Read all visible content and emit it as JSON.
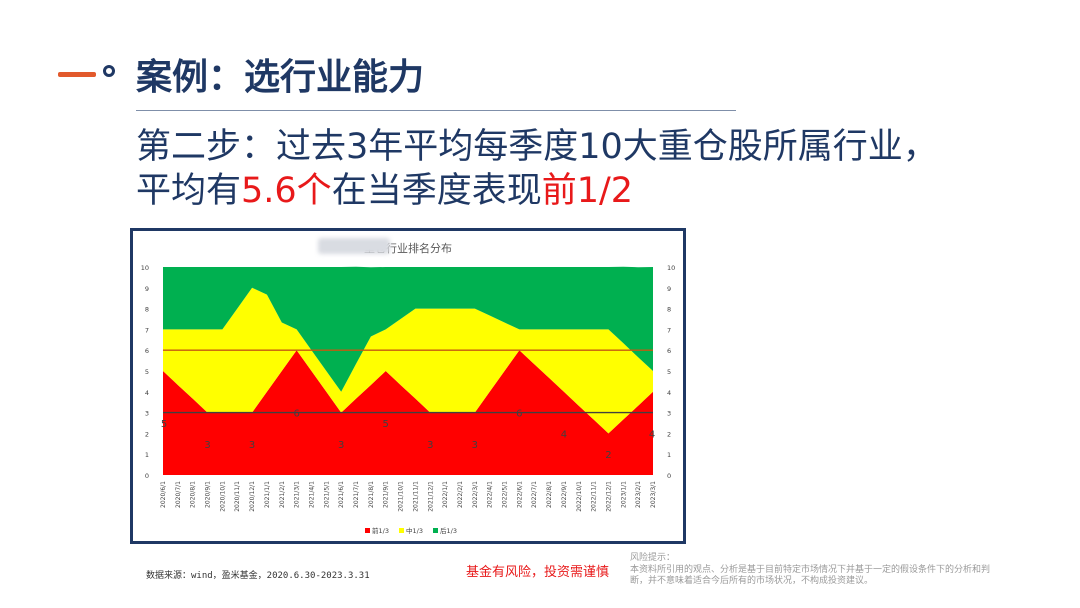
{
  "header": {
    "title": "案例：选行业能力",
    "step_line1": "第二步：过去3年平均每季度10大重仓股所属行业，",
    "step_line2_prefix": "平均有",
    "step_line2_number": "5.6个",
    "step_line2_middle": "在当季度表现",
    "step_line2_highlight": "前1/2"
  },
  "chart_data": {
    "type": "area",
    "title": "重仓行业排名分布",
    "categories": [
      "2020/6/1",
      "2020/7/1",
      "2020/8/1",
      "2020/9/1",
      "2020/10/1",
      "2020/11/1",
      "2020/12/1",
      "2021/1/1",
      "2021/2/1",
      "2021/3/1",
      "2021/4/1",
      "2021/5/1",
      "2021/6/1",
      "2021/7/1",
      "2021/8/1",
      "2021/9/1",
      "2021/10/1",
      "2021/11/1",
      "2021/12/1",
      "2022/1/1",
      "2022/2/1",
      "2022/3/1",
      "2022/4/1",
      "2022/5/1",
      "2022/6/1",
      "2022/7/1",
      "2022/8/1",
      "2022/9/1",
      "2022/10/1",
      "2022/11/1",
      "2022/12/1",
      "2023/1/1",
      "2023/2/1",
      "2023/3/1"
    ],
    "series": [
      {
        "name": "前1/3",
        "color": "#ff0000",
        "values": [
          5,
          4.33,
          3.67,
          3,
          3,
          3,
          3,
          4,
          5,
          6,
          5,
          4,
          3,
          3.67,
          4.33,
          5,
          4.33,
          3.67,
          3,
          3,
          3,
          3,
          4,
          5,
          6,
          5.33,
          4.67,
          4,
          3.33,
          2.67,
          2,
          2.67,
          3.33,
          4
        ]
      },
      {
        "name": "中1/3",
        "color": "#ffff00",
        "values": [
          2,
          2.67,
          3.33,
          4,
          4,
          5,
          6,
          4.67,
          2.33,
          1,
          1,
          1,
          1,
          1.67,
          2.33,
          2,
          3.17,
          4.33,
          5,
          5,
          5,
          5,
          3.67,
          2.33,
          1,
          1.67,
          2.33,
          3,
          3.67,
          4.33,
          5,
          3.67,
          2.33,
          1
        ]
      },
      {
        "name": "后1/3",
        "color": "#00b050",
        "values": [
          3,
          3,
          3,
          3,
          3,
          2,
          1,
          1.33,
          2.67,
          3,
          4,
          5,
          6,
          4.67,
          3.33,
          3,
          2.5,
          2,
          2,
          2,
          2,
          2,
          2.33,
          2.67,
          3,
          3,
          3,
          3,
          3,
          3,
          3,
          3.67,
          4.33,
          5
        ]
      }
    ],
    "data_labels": [
      {
        "index": 0,
        "text": "5"
      },
      {
        "index": 3,
        "text": "3"
      },
      {
        "index": 6,
        "text": "3"
      },
      {
        "index": 9,
        "text": "6"
      },
      {
        "index": 12,
        "text": "3"
      },
      {
        "index": 15,
        "text": "5"
      },
      {
        "index": 18,
        "text": "3"
      },
      {
        "index": 21,
        "text": "3"
      },
      {
        "index": 24,
        "text": "6"
      },
      {
        "index": 27,
        "text": "4"
      },
      {
        "index": 30,
        "text": "2"
      },
      {
        "index": 33,
        "text": "4"
      }
    ],
    "reference_lines": [
      {
        "y": 6,
        "color": "#c55a11"
      },
      {
        "y": 3,
        "color": "#404040"
      }
    ],
    "ylim": [
      0,
      10
    ],
    "yticks": [
      0,
      1,
      2,
      3,
      4,
      5,
      6,
      7,
      8,
      9,
      10
    ],
    "legend_position": "bottom",
    "grid": false
  },
  "footer": {
    "source": "数据来源：wind，盈米基金，2020.6.30-2023.3.31",
    "risk": "基金有风险，投资需谨慎",
    "note_title": "风险提示：",
    "note_body": "本资料所引用的观点、分析是基于目前特定市场情况下并基于一定的假设条件下的分析和判断，并不意味着适合今后所有的市场状况，不构成投资建议。"
  }
}
